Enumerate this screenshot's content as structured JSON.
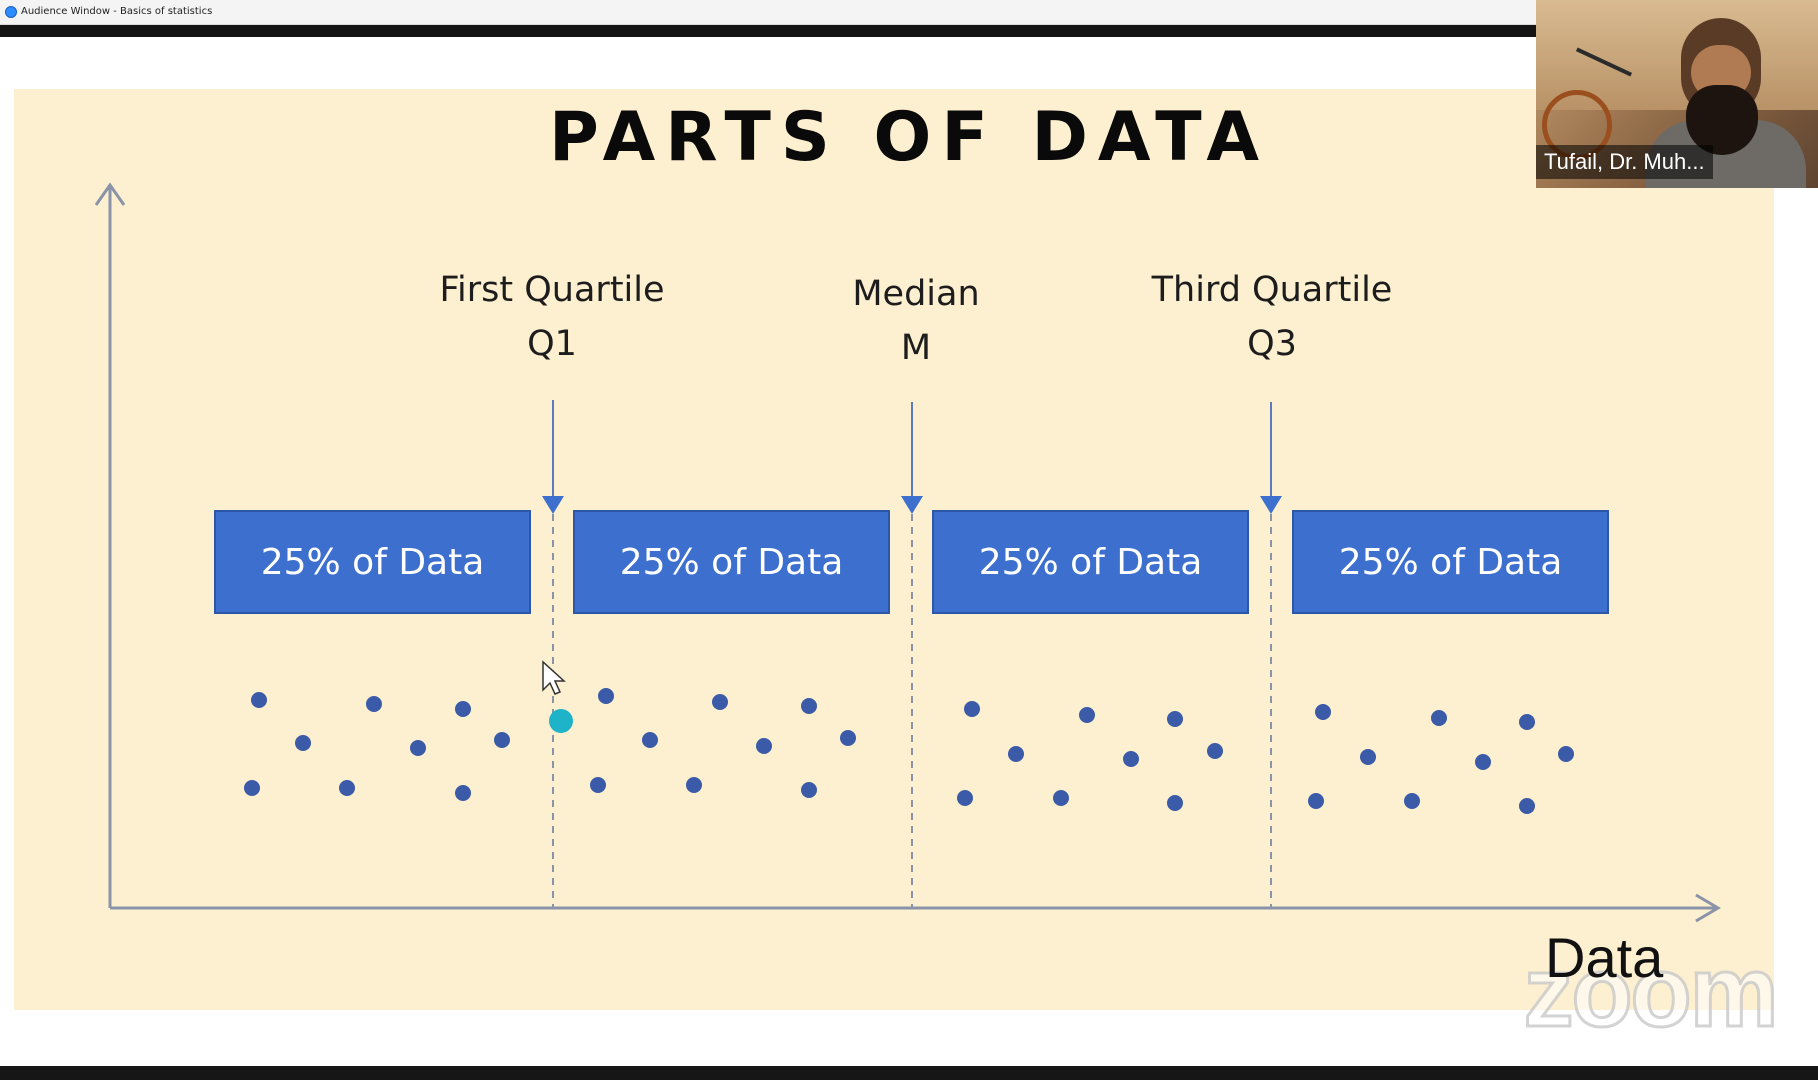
{
  "window": {
    "title": "Audience Window - Basics of statistics"
  },
  "slide": {
    "title": "PARTS OF DATA",
    "x_axis_label": "Data",
    "markers": [
      {
        "line1": "First Quartile",
        "line2": "Q1"
      },
      {
        "line1": "Median",
        "line2": "M"
      },
      {
        "line1": "Third Quartile",
        "line2": "Q3"
      }
    ],
    "boxes": [
      {
        "label": "25% of Data"
      },
      {
        "label": "25% of Data"
      },
      {
        "label": "25% of Data"
      },
      {
        "label": "25% of Data"
      }
    ],
    "colors": {
      "background": "#fdf0d0",
      "box": "#3d6fce",
      "dot": "#3b5ba8",
      "highlight_dot": "#1fb3c9",
      "axis": "#8a93a8"
    }
  },
  "video": {
    "participant_name": "Tufail, Dr. Muh..."
  },
  "watermark": {
    "text": "zoom"
  },
  "icons": {
    "app": "zoom-app-icon",
    "cursor": "mouse-pointer-icon"
  }
}
